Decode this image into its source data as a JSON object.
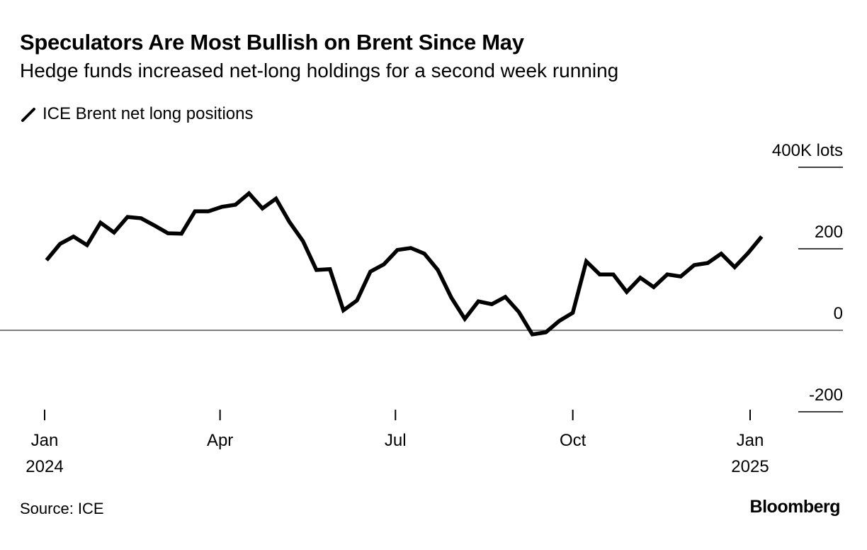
{
  "title": "Speculators Are Most Bullish on Brent Since May",
  "subtitle": "Hedge funds increased net-long holdings for a second week running",
  "source": "Source: ICE",
  "logo": "Bloomberg",
  "chart_data": {
    "type": "line",
    "title": "Speculators Are Most Bullish on Brent Since May",
    "subtitle": "Hedge funds increased net-long holdings for a second week running",
    "legend": "top-left",
    "grid": true,
    "ylim": [
      -200,
      400
    ],
    "yunit": "K lots",
    "y_ticks": [
      {
        "value": 400,
        "label": "400K lots"
      },
      {
        "value": 200,
        "label": "200"
      },
      {
        "value": 0,
        "label": "0"
      },
      {
        "value": -200,
        "label": "-200"
      }
    ],
    "xlim": [
      "2024-01-01",
      "2025-01-20"
    ],
    "x_ticks": [
      {
        "date": "2024-01-01",
        "label": "Jan",
        "year": "2024"
      },
      {
        "date": "2024-04-01",
        "label": "Apr",
        "year": ""
      },
      {
        "date": "2024-07-01",
        "label": "Jul",
        "year": ""
      },
      {
        "date": "2024-10-01",
        "label": "Oct",
        "year": ""
      },
      {
        "date": "2025-01-01",
        "label": "Jan",
        "year": "2025"
      }
    ],
    "series": [
      {
        "name": "ICE Brent net long positions",
        "color": "#000000",
        "x": [
          "2024-01-02",
          "2024-01-09",
          "2024-01-16",
          "2024-01-23",
          "2024-01-30",
          "2024-02-06",
          "2024-02-13",
          "2024-02-20",
          "2024-02-27",
          "2024-03-05",
          "2024-03-12",
          "2024-03-19",
          "2024-03-26",
          "2024-04-02",
          "2024-04-09",
          "2024-04-16",
          "2024-04-23",
          "2024-04-30",
          "2024-05-07",
          "2024-05-14",
          "2024-05-21",
          "2024-05-28",
          "2024-06-04",
          "2024-06-11",
          "2024-06-18",
          "2024-06-25",
          "2024-07-02",
          "2024-07-09",
          "2024-07-16",
          "2024-07-23",
          "2024-07-30",
          "2024-08-06",
          "2024-08-13",
          "2024-08-20",
          "2024-08-27",
          "2024-09-03",
          "2024-09-10",
          "2024-09-17",
          "2024-09-24",
          "2024-10-01",
          "2024-10-08",
          "2024-10-15",
          "2024-10-22",
          "2024-10-29",
          "2024-11-05",
          "2024-11-12",
          "2024-11-19",
          "2024-11-26",
          "2024-12-03",
          "2024-12-10",
          "2024-12-17",
          "2024-12-24",
          "2024-12-31",
          "2025-01-07"
        ],
        "values": [
          172,
          212,
          230,
          209,
          264,
          240,
          278,
          275,
          257,
          238,
          237,
          292,
          292,
          303,
          308,
          336,
          299,
          323,
          266,
          219,
          148,
          150,
          49,
          73,
          144,
          162,
          197,
          202,
          188,
          148,
          80,
          28,
          71,
          64,
          82,
          45,
          -10,
          -5,
          23,
          43,
          169,
          137,
          137,
          94,
          129,
          106,
          137,
          132,
          160,
          165,
          188,
          155,
          190,
          230
        ]
      }
    ]
  }
}
